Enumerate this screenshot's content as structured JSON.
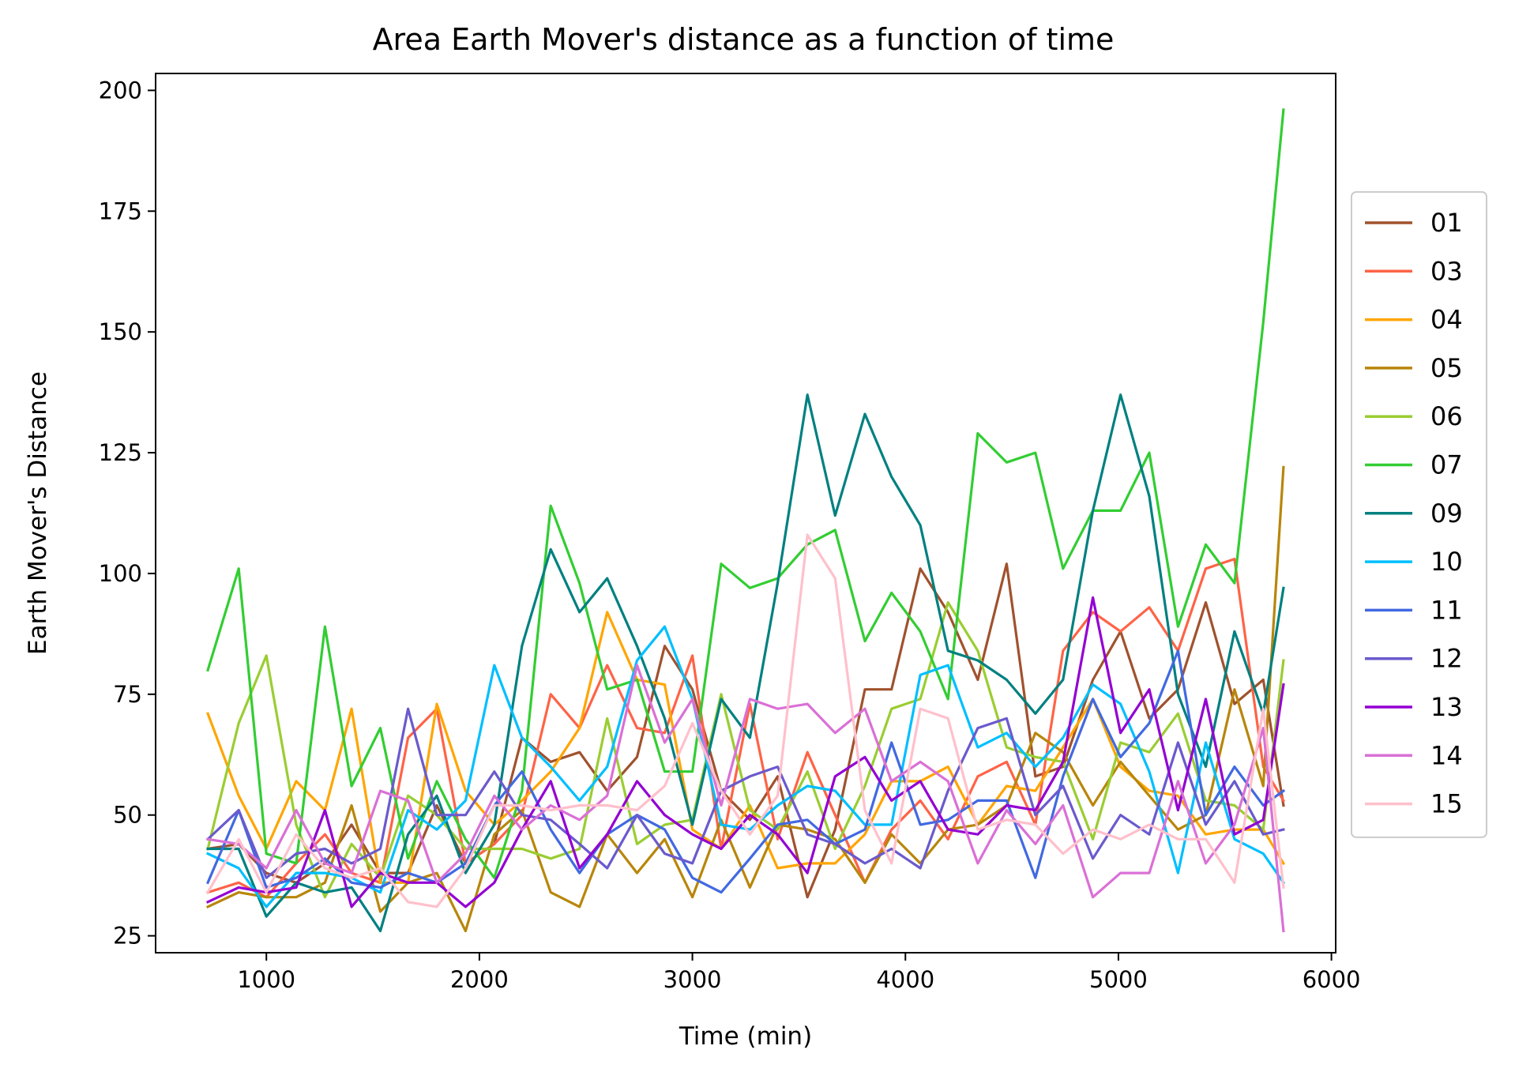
{
  "chart_data": {
    "type": "line",
    "title": "Area Earth Mover's distance as a function of time",
    "xlabel": "Time (min)",
    "ylabel": "Earth Mover's Distance",
    "xlim": [
      480,
      6020
    ],
    "ylim": [
      21.5,
      203.5
    ],
    "x_ticks": [
      1000,
      2000,
      3000,
      4000,
      5000,
      6000
    ],
    "y_ticks": [
      25,
      50,
      75,
      100,
      125,
      150,
      175,
      200
    ],
    "grid": false,
    "legend_position": "right, outside plot",
    "x": [
      725,
      870,
      1000,
      1140,
      1275,
      1400,
      1535,
      1665,
      1800,
      1935,
      2070,
      2200,
      2335,
      2470,
      2600,
      2740,
      2870,
      3000,
      3135,
      3270,
      3400,
      3540,
      3670,
      3810,
      3935,
      4070,
      4200,
      4340,
      4475,
      4610,
      4740,
      4880,
      5010,
      5145,
      5280,
      5410,
      5545,
      5680,
      5775
    ],
    "series": [
      {
        "name": "01",
        "color": "#a0522d",
        "values": [
          43,
          44,
          38,
          36,
          40,
          48,
          38,
          38,
          52,
          40,
          44,
          66,
          61,
          63,
          55,
          62,
          85,
          76,
          55,
          49,
          58,
          33,
          47,
          76,
          76,
          101,
          92,
          78,
          102,
          58,
          60,
          78,
          88,
          70,
          76,
          94,
          73,
          78,
          52
        ]
      },
      {
        "name": "03",
        "color": "#ff6347",
        "values": [
          34,
          36,
          33,
          40,
          46,
          38,
          36,
          66,
          72,
          40,
          44,
          50,
          75,
          68,
          81,
          68,
          67,
          83,
          43,
          73,
          45,
          63,
          50,
          36,
          47,
          53,
          45,
          58,
          61,
          48,
          84,
          92,
          88,
          93,
          84,
          101,
          103,
          60,
          53
        ]
      },
      {
        "name": "04",
        "color": "#ffa500",
        "values": [
          71,
          54,
          43,
          57,
          51,
          72,
          36,
          36,
          73,
          55,
          48,
          53,
          59,
          68,
          92,
          78,
          77,
          47,
          43,
          52,
          39,
          40,
          40,
          46,
          57,
          57,
          60,
          48,
          56,
          55,
          64,
          74,
          60,
          55,
          54,
          46,
          47,
          47,
          40
        ]
      },
      {
        "name": "05",
        "color": "#b8860b",
        "values": [
          31,
          34,
          33,
          33,
          36,
          52,
          30,
          36,
          38,
          26,
          46,
          51,
          34,
          31,
          46,
          38,
          45,
          33,
          49,
          35,
          48,
          47,
          45,
          36,
          46,
          40,
          47,
          48,
          52,
          67,
          63,
          52,
          61,
          54,
          47,
          50,
          76,
          56,
          122
        ]
      },
      {
        "name": "06",
        "color": "#9acd32",
        "values": [
          43,
          69,
          83,
          48,
          33,
          44,
          37,
          54,
          50,
          43,
          43,
          43,
          41,
          43,
          70,
          44,
          48,
          49,
          75,
          51,
          47,
          59,
          43,
          56,
          72,
          74,
          94,
          84,
          64,
          62,
          61,
          45,
          65,
          63,
          71,
          53,
          52,
          47,
          82
        ]
      },
      {
        "name": "07",
        "color": "#32cd32",
        "values": [
          80,
          101,
          42,
          40,
          89,
          56,
          68,
          41,
          57,
          45,
          37,
          55,
          114,
          98,
          76,
          78,
          59,
          59,
          102,
          97,
          99,
          106,
          109,
          86,
          96,
          88,
          74,
          129,
          123,
          125,
          101,
          113,
          113,
          125,
          89,
          106,
          98,
          152,
          196
        ]
      },
      {
        "name": "09",
        "color": "#008080",
        "values": [
          43,
          43,
          29,
          36,
          34,
          35,
          26,
          46,
          54,
          38,
          48,
          85,
          105,
          92,
          99,
          85,
          70,
          48,
          74,
          66,
          98,
          137,
          112,
          133,
          120,
          110,
          84,
          82,
          78,
          71,
          78,
          113,
          137,
          116,
          75,
          60,
          88,
          71,
          97
        ]
      },
      {
        "name": "10",
        "color": "#00bfff",
        "values": [
          42,
          39,
          31,
          38,
          38,
          37,
          34,
          51,
          47,
          53,
          81,
          66,
          60,
          53,
          60,
          82,
          89,
          74,
          48,
          47,
          52,
          56,
          55,
          48,
          48,
          79,
          81,
          64,
          67,
          60,
          66,
          77,
          73,
          59,
          38,
          65,
          45,
          42,
          36
        ]
      },
      {
        "name": "11",
        "color": "#4169e1",
        "values": [
          36,
          51,
          35,
          37,
          41,
          36,
          35,
          38,
          36,
          40,
          52,
          59,
          47,
          38,
          46,
          50,
          47,
          37,
          34,
          41,
          48,
          49,
          44,
          47,
          65,
          48,
          49,
          53,
          53,
          37,
          58,
          74,
          62,
          69,
          84,
          50,
          60,
          52,
          55
        ]
      },
      {
        "name": "12",
        "color": "#6a5acd",
        "values": [
          45,
          51,
          37,
          42,
          43,
          40,
          43,
          72,
          50,
          50,
          59,
          50,
          49,
          44,
          39,
          50,
          42,
          40,
          55,
          58,
          60,
          46,
          44,
          40,
          43,
          39,
          55,
          68,
          70,
          50,
          56,
          41,
          50,
          46,
          65,
          48,
          57,
          46,
          47
        ]
      },
      {
        "name": "13",
        "color": "#9400d3",
        "values": [
          32,
          35,
          34,
          35,
          51,
          31,
          38,
          36,
          36,
          31,
          36,
          47,
          57,
          39,
          46,
          57,
          50,
          46,
          43,
          50,
          46,
          38,
          58,
          62,
          53,
          57,
          47,
          46,
          52,
          51,
          61,
          95,
          67,
          76,
          51,
          74,
          46,
          49,
          77
        ]
      },
      {
        "name": "14",
        "color": "#da70d6",
        "values": [
          45,
          44,
          39,
          51,
          40,
          38,
          55,
          53,
          36,
          42,
          54,
          47,
          52,
          49,
          54,
          81,
          65,
          74,
          52,
          74,
          72,
          73,
          67,
          72,
          57,
          61,
          57,
          40,
          51,
          44,
          52,
          33,
          38,
          38,
          57,
          40,
          48,
          68,
          26
        ]
      },
      {
        "name": "15",
        "color": "#ffc0cb",
        "values": [
          34,
          45,
          34,
          46,
          39,
          37,
          39,
          32,
          31,
          39,
          52,
          52,
          51,
          52,
          52,
          51,
          56,
          69,
          55,
          46,
          54,
          108,
          99,
          51,
          40,
          72,
          70,
          47,
          49,
          48,
          42,
          47,
          45,
          48,
          45,
          45,
          36,
          72,
          35
        ]
      }
    ]
  }
}
